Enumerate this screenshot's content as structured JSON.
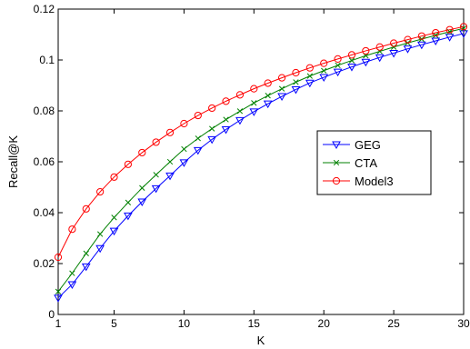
{
  "chart_data": {
    "type": "line",
    "title": "",
    "xlabel": "K",
    "ylabel": "Recall@K",
    "xlim": [
      1,
      30
    ],
    "ylim": [
      0,
      0.12
    ],
    "xticks": [
      1,
      5,
      10,
      15,
      20,
      25,
      30
    ],
    "yticks": [
      0,
      0.02,
      0.04,
      0.06,
      0.08,
      0.1,
      0.12
    ],
    "ytick_labels": [
      "0",
      "0.02",
      "0.04",
      "0.06",
      "0.08",
      "0.1",
      "0.12"
    ],
    "grid": false,
    "legend_position": "right-middle",
    "x": [
      1,
      2,
      3,
      4,
      5,
      6,
      7,
      8,
      9,
      10,
      11,
      12,
      13,
      14,
      15,
      16,
      17,
      18,
      19,
      20,
      21,
      22,
      23,
      24,
      25,
      26,
      27,
      28,
      29,
      30
    ],
    "series": [
      {
        "name": "GEG",
        "color": "#0000ff",
        "marker": "triangle-down",
        "values": [
          0.0065,
          0.0118,
          0.0188,
          0.026,
          0.0328,
          0.0388,
          0.0443,
          0.0495,
          0.0545,
          0.0597,
          0.0645,
          0.0688,
          0.0727,
          0.0763,
          0.0797,
          0.0828,
          0.0857,
          0.0884,
          0.091,
          0.0932,
          0.0953,
          0.0973,
          0.0992,
          0.101,
          0.1027,
          0.1044,
          0.106,
          0.1075,
          0.109,
          0.1104
        ]
      },
      {
        "name": "CTA",
        "color": "#008000",
        "marker": "x",
        "values": [
          0.009,
          0.0162,
          0.024,
          0.0316,
          0.0381,
          0.044,
          0.0497,
          0.0549,
          0.06,
          0.065,
          0.0692,
          0.073,
          0.0766,
          0.0799,
          0.0831,
          0.086,
          0.0887,
          0.0913,
          0.0937,
          0.0958,
          0.0979,
          0.0998,
          0.1017,
          0.1034,
          0.1051,
          0.1067,
          0.1082,
          0.1097,
          0.1111,
          0.1124
        ]
      },
      {
        "name": "Model3",
        "color": "#ff0000",
        "marker": "circle",
        "values": [
          0.0225,
          0.0335,
          0.0415,
          0.0482,
          0.054,
          0.059,
          0.0636,
          0.0677,
          0.0715,
          0.075,
          0.0782,
          0.0811,
          0.0838,
          0.0863,
          0.0887,
          0.0909,
          0.093,
          0.095,
          0.0969,
          0.0987,
          0.1004,
          0.102,
          0.1036,
          0.1051,
          0.1066,
          0.108,
          0.1094,
          0.1107,
          0.1119,
          0.1131
        ]
      }
    ]
  }
}
